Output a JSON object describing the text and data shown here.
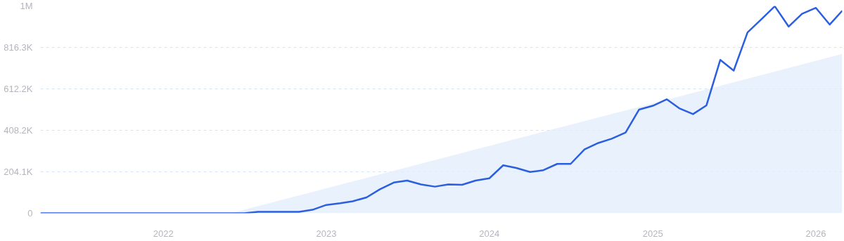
{
  "chart_data": {
    "type": "line",
    "x": [
      "2021-04",
      "2021-05",
      "2021-06",
      "2021-07",
      "2021-08",
      "2021-09",
      "2021-10",
      "2021-11",
      "2021-12",
      "2022-01",
      "2022-02",
      "2022-03",
      "2022-04",
      "2022-05",
      "2022-06",
      "2022-07",
      "2022-08",
      "2022-09",
      "2022-10",
      "2022-11",
      "2022-12",
      "2023-01",
      "2023-02",
      "2023-03",
      "2023-04",
      "2023-05",
      "2023-06",
      "2023-07",
      "2023-08",
      "2023-09",
      "2023-10",
      "2023-11",
      "2023-12",
      "2024-01",
      "2024-02",
      "2024-03",
      "2024-04",
      "2024-05",
      "2024-06",
      "2024-07",
      "2024-08",
      "2024-09",
      "2024-10",
      "2024-11",
      "2024-12",
      "2025-01",
      "2025-02",
      "2025-03",
      "2025-04",
      "2025-05",
      "2025-06",
      "2025-07",
      "2025-08",
      "2025-09",
      "2025-10",
      "2025-11",
      "2025-12",
      "2026-01",
      "2026-02",
      "2026-03"
    ],
    "series": [
      {
        "type": "area",
        "color": "#e3eefb",
        "x": [
          "2022-06",
          "2026-03"
        ],
        "values": [
          0,
          784000
        ]
      },
      {
        "color": "#2b5fe0",
        "values": [
          0,
          0,
          0,
          0,
          0,
          0,
          0,
          0,
          0,
          0,
          0,
          0,
          0,
          0,
          0,
          0,
          7000,
          7000,
          7000,
          7000,
          17000,
          41000,
          49000,
          59000,
          78000,
          118000,
          151000,
          161000,
          142000,
          131000,
          142000,
          140000,
          161000,
          172000,
          236000,
          223000,
          203000,
          212000,
          243000,
          243000,
          314000,
          346000,
          367000,
          397000,
          510000,
          529000,
          561000,
          517000,
          488000,
          531000,
          755000,
          702000,
          890000,
          955000,
          1019000,
          919000,
          982000,
          1011000,
          929000,
          997000
        ]
      }
    ],
    "xlim": [
      "2021-04",
      "2026-03"
    ],
    "xticks": [
      {
        "value": "2022",
        "label": "2022"
      },
      {
        "value": "2023",
        "label": "2023"
      },
      {
        "value": "2024",
        "label": "2024"
      },
      {
        "value": "2025",
        "label": "2025"
      },
      {
        "value": "2026",
        "label": "2026"
      }
    ],
    "ylim": [
      0,
      1020400
    ],
    "yticks": [
      0,
      {
        "value": 204100,
        "label": "204.1K"
      },
      {
        "value": 408200,
        "label": "408.2K"
      },
      {
        "value": 612200,
        "label": "612.2K"
      },
      {
        "value": 816300,
        "label": "816.3K"
      },
      {
        "value": 1020400,
        "label": "1M"
      }
    ],
    "grid": "y",
    "marker": "none",
    "line_style": "solid"
  }
}
